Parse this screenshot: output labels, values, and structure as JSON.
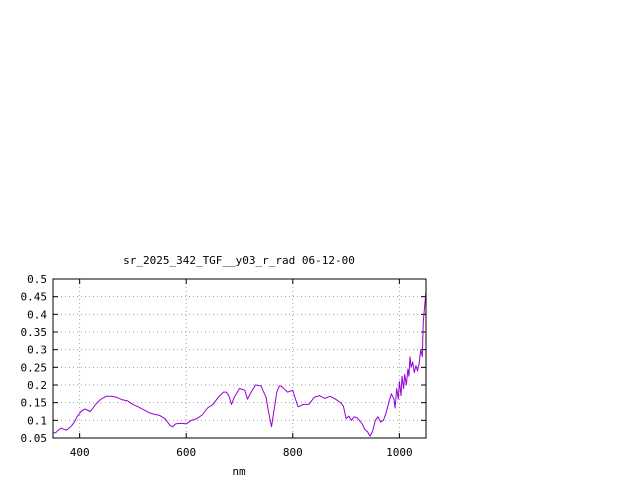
{
  "chart_data": {
    "type": "line",
    "title": "sr_2025_342_TGF__y03_r_rad 06-12-00",
    "xlabel": "nm",
    "ylabel": "",
    "xlim": [
      350,
      1050
    ],
    "ylim": [
      0.05,
      0.5
    ],
    "x_ticks": [
      400,
      600,
      800,
      1000
    ],
    "y_ticks": [
      0.05,
      0.1,
      0.15,
      0.2,
      0.25,
      0.3,
      0.35,
      0.4,
      0.45,
      0.5
    ],
    "grid": true,
    "series": [
      {
        "color": "#9400d3",
        "x": [
          350,
          355,
          360,
          365,
          370,
          375,
          380,
          385,
          390,
          395,
          400,
          405,
          410,
          420,
          430,
          440,
          450,
          460,
          470,
          480,
          490,
          500,
          510,
          520,
          530,
          540,
          550,
          560,
          565,
          570,
          575,
          580,
          590,
          600,
          610,
          620,
          630,
          640,
          650,
          660,
          670,
          675,
          680,
          685,
          690,
          700,
          710,
          715,
          720,
          730,
          740,
          750,
          755,
          760,
          765,
          770,
          775,
          780,
          790,
          800,
          805,
          810,
          820,
          830,
          840,
          850,
          860,
          870,
          880,
          890,
          895,
          900,
          905,
          910,
          915,
          920,
          925,
          930,
          935,
          940,
          945,
          950,
          955,
          960,
          965,
          970,
          975,
          980,
          985,
          990,
          992,
          995,
          998,
          1000,
          1003,
          1005,
          1008,
          1010,
          1013,
          1016,
          1018,
          1020,
          1022,
          1025,
          1028,
          1031,
          1034,
          1037,
          1040,
          1043,
          1045,
          1048,
          1050
        ],
        "y": [
          0.065,
          0.065,
          0.072,
          0.078,
          0.075,
          0.072,
          0.078,
          0.085,
          0.095,
          0.11,
          0.12,
          0.128,
          0.132,
          0.125,
          0.145,
          0.16,
          0.168,
          0.168,
          0.165,
          0.158,
          0.155,
          0.145,
          0.138,
          0.13,
          0.122,
          0.117,
          0.114,
          0.105,
          0.095,
          0.085,
          0.082,
          0.09,
          0.092,
          0.09,
          0.1,
          0.105,
          0.115,
          0.135,
          0.145,
          0.165,
          0.18,
          0.18,
          0.17,
          0.145,
          0.165,
          0.19,
          0.185,
          0.16,
          0.175,
          0.2,
          0.198,
          0.165,
          0.12,
          0.082,
          0.13,
          0.18,
          0.198,
          0.195,
          0.18,
          0.185,
          0.16,
          0.138,
          0.145,
          0.145,
          0.165,
          0.17,
          0.162,
          0.168,
          0.16,
          0.15,
          0.14,
          0.105,
          0.112,
          0.1,
          0.11,
          0.108,
          0.1,
          0.09,
          0.075,
          0.068,
          0.055,
          0.07,
          0.1,
          0.11,
          0.095,
          0.1,
          0.12,
          0.15,
          0.175,
          0.16,
          0.135,
          0.19,
          0.16,
          0.21,
          0.17,
          0.225,
          0.19,
          0.23,
          0.2,
          0.245,
          0.225,
          0.28,
          0.25,
          0.265,
          0.235,
          0.255,
          0.24,
          0.26,
          0.3,
          0.28,
          0.38,
          0.43,
          0.465
        ]
      }
    ]
  }
}
